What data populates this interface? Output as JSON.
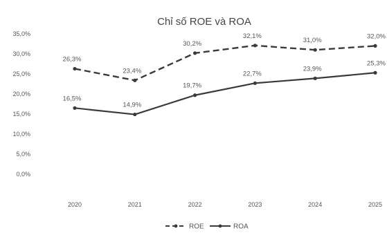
{
  "chart_data": {
    "type": "line",
    "title": "Chỉ số ROE và ROA",
    "categories": [
      "2020",
      "2021",
      "2022",
      "2023",
      "2024",
      "2025"
    ],
    "series": [
      {
        "name": "ROE",
        "values": [
          26.3,
          23.4,
          30.2,
          32.1,
          31.0,
          32.0
        ],
        "labels": [
          "26,3%",
          "23,4%",
          "30,2%",
          "32,1%",
          "31,0%",
          "32,0%"
        ],
        "color": "#3a3a3a",
        "dash": true
      },
      {
        "name": "ROA",
        "values": [
          16.5,
          14.9,
          19.7,
          22.7,
          23.9,
          25.3
        ],
        "labels": [
          "16,5%",
          "14,9%",
          "19,7%",
          "22,7%",
          "23,9%",
          "25,3%"
        ],
        "color": "#3a3a3a",
        "dash": false
      }
    ],
    "ylim": [
      0,
      35
    ],
    "yticks": [
      0,
      5,
      10,
      15,
      20,
      25,
      30,
      35
    ],
    "ytick_labels": [
      "0,0%",
      "5,0%",
      "10,0%",
      "15,0%",
      "20,0%",
      "25,0%",
      "30,0%",
      "35,0%"
    ],
    "grid": false,
    "legend_position": "bottom"
  }
}
